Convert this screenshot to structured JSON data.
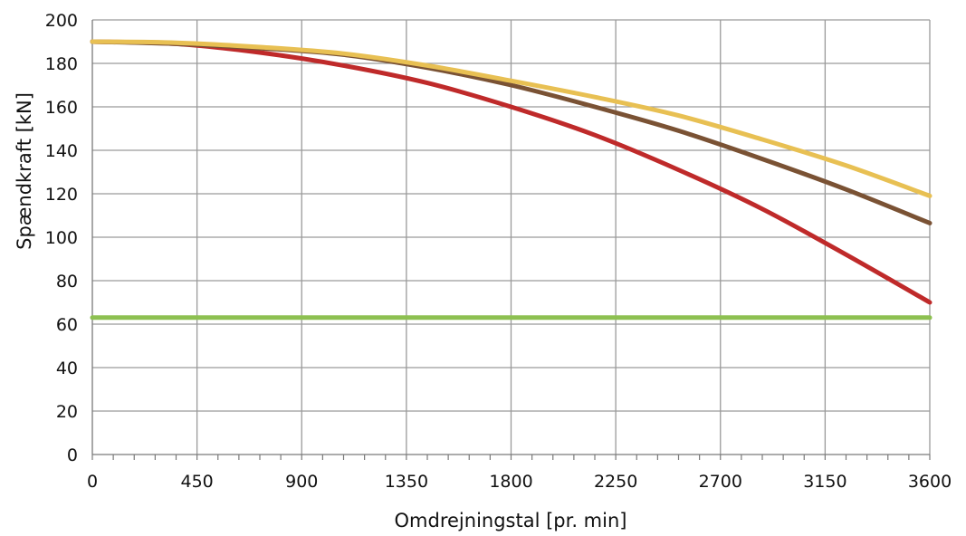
{
  "chart_data": {
    "type": "line",
    "title": "",
    "xlabel": "Omdrejningstal [pr. min]",
    "ylabel": "Spændkraft [kN]",
    "xlim": [
      0,
      3600
    ],
    "ylim": [
      0,
      200
    ],
    "x_ticks": [
      0,
      450,
      900,
      1350,
      1800,
      2250,
      2700,
      3150,
      3600
    ],
    "y_ticks": [
      0,
      20,
      40,
      60,
      80,
      100,
      120,
      140,
      160,
      180,
      200
    ],
    "x_tick_labels": [
      "0",
      "450",
      "900",
      "1350",
      "1800",
      "2250",
      "2700",
      "3150",
      "3600"
    ],
    "y_tick_labels": [
      "0",
      "20",
      "40",
      "60",
      "80",
      "100",
      "120",
      "140",
      "160",
      "180",
      "200"
    ],
    "grid": true,
    "legend": "none",
    "series": [
      {
        "color": "#8dc051",
        "x": [
          0,
          3600
        ],
        "values": [
          63,
          63
        ]
      },
      {
        "color": "#bf2a2a",
        "x": [
          0,
          360,
          720,
          1080,
          1440,
          1800,
          2160,
          2520,
          2880,
          3240,
          3600
        ],
        "values": [
          190,
          189,
          185,
          179,
          171,
          160,
          147,
          131,
          113,
          92,
          70
        ]
      },
      {
        "color": "#7a5234",
        "x": [
          0,
          360,
          720,
          1080,
          1440,
          1800,
          2160,
          2520,
          2880,
          3240,
          3600
        ],
        "values": [
          190,
          189,
          187,
          184,
          178,
          170,
          160,
          149,
          136,
          122,
          106.5
        ]
      },
      {
        "color": "#e8c053",
        "x": [
          0,
          360,
          720,
          1080,
          1440,
          1800,
          2160,
          2520,
          2880,
          3240,
          3600
        ],
        "values": [
          190,
          189.5,
          187.5,
          184.5,
          179,
          172,
          164.5,
          156,
          145,
          133,
          119
        ]
      }
    ]
  }
}
